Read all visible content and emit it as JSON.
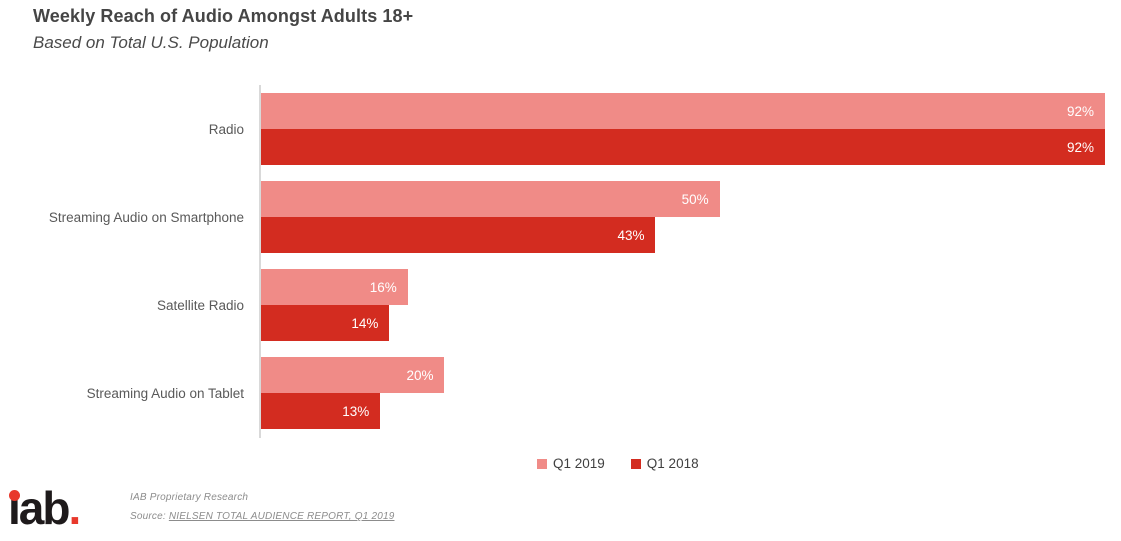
{
  "header": {
    "title": "Weekly Reach of Audio Amongst Adults 18+",
    "subtitle": "Based on Total U.S. Population"
  },
  "chart_data": {
    "type": "bar",
    "orientation": "horizontal",
    "title": "Weekly Reach of Audio Amongst Adults 18+",
    "subtitle": "Based on Total U.S. Population",
    "categories": [
      "Radio",
      "Streaming Audio on Smartphone",
      "Satellite Radio",
      "Streaming Audio on Tablet"
    ],
    "series": [
      {
        "name": "Q1 2019",
        "color": "#F08B87",
        "values": [
          92,
          50,
          16,
          20
        ]
      },
      {
        "name": "Q1 2018",
        "color": "#D32C20",
        "values": [
          92,
          43,
          14,
          13
        ]
      }
    ],
    "value_suffix": "%",
    "xlim": [
      0,
      92
    ],
    "grid": false,
    "legend_position": "bottom-center",
    "data_labels": "inside-end",
    "data_label_color": "#FFFFFF",
    "axis_line_color": "#D9D9D9"
  },
  "footer": {
    "logo_text": "iab.",
    "logo_glyphs": "ıab",
    "logo_period": ".",
    "line1": "IAB Proprietary Research",
    "source_prefix": "Source: ",
    "source_link": "NIELSEN TOTAL AUDIENCE REPORT, Q1 2019"
  },
  "colors": {
    "title_text": "#454545",
    "category_label": "#595959",
    "legend_text": "#404040",
    "footer_text": "#8C8C8C",
    "logo_black": "#1E1A1B",
    "logo_red": "#E8392C",
    "series_2019": "#F08B87",
    "series_2018": "#D32C20",
    "axis_line": "#D9D9D9"
  }
}
